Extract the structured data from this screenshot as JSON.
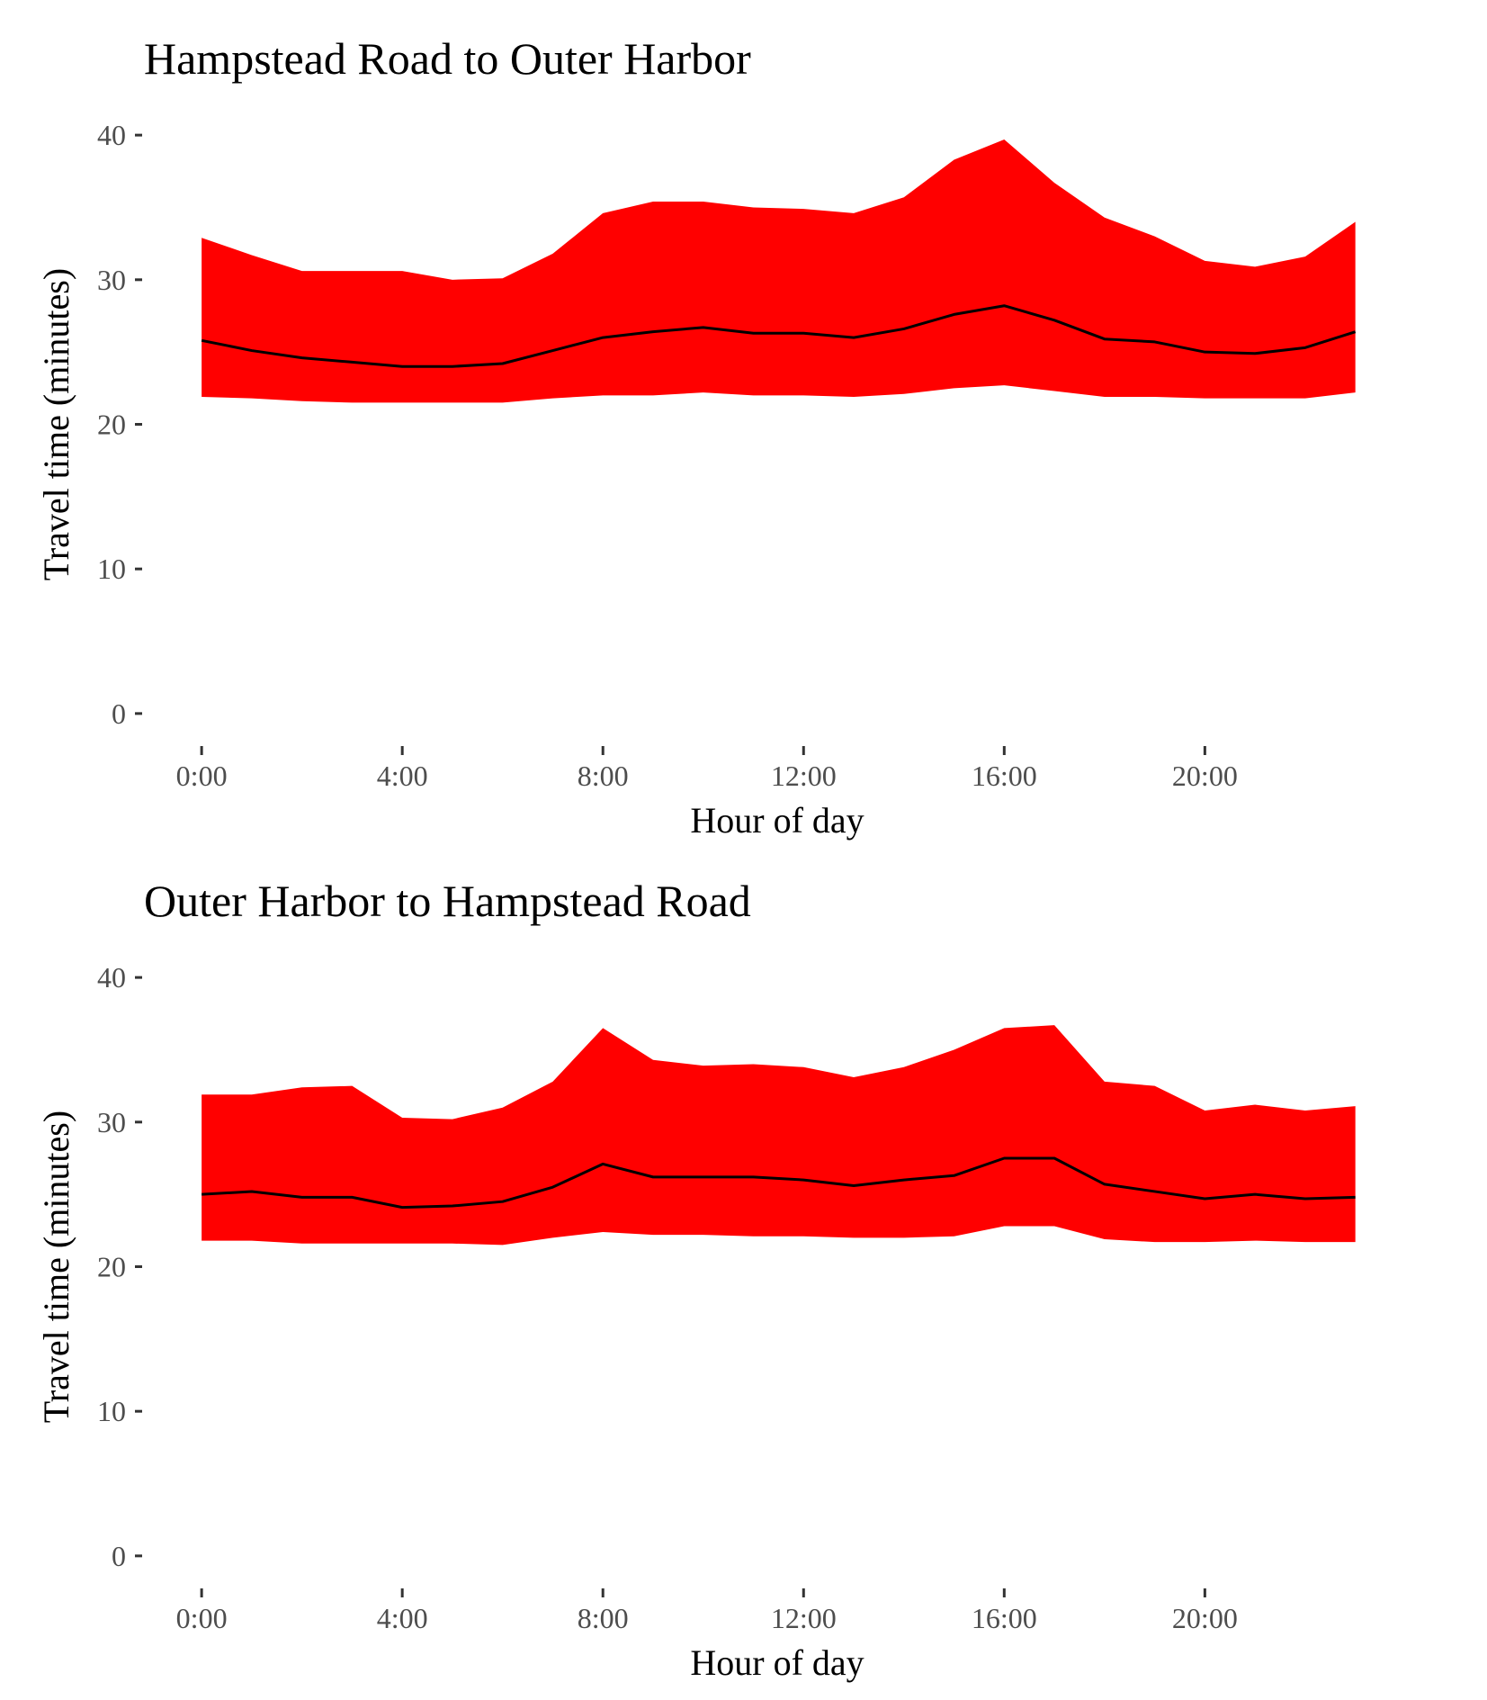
{
  "colors": {
    "band": "#ff0000",
    "line": "#000000",
    "tick_text": "#4d4d4d",
    "background": "#ffffff"
  },
  "chart_data": [
    {
      "type": "area",
      "title": "Hampstead Road to Outer Harbor",
      "xlabel": "Hour of day",
      "ylabel": "Travel time (minutes)",
      "x": [
        0,
        1,
        2,
        3,
        4,
        5,
        6,
        7,
        8,
        9,
        10,
        11,
        12,
        13,
        14,
        15,
        16,
        17,
        18,
        19,
        20,
        21,
        22,
        23
      ],
      "x_ticks": [
        {
          "value": 0,
          "label": "0:00"
        },
        {
          "value": 4,
          "label": "4:00"
        },
        {
          "value": 8,
          "label": "8:00"
        },
        {
          "value": 12,
          "label": "12:00"
        },
        {
          "value": 16,
          "label": "16:00"
        },
        {
          "value": 20,
          "label": "20:00"
        }
      ],
      "y_ticks": [
        0,
        10,
        20,
        30,
        40
      ],
      "xlim": [
        -1.15,
        24.1
      ],
      "ylim": [
        -2,
        42
      ],
      "grid": false,
      "series": [
        {
          "role": "upper",
          "values": [
            32.9,
            31.7,
            30.6,
            30.6,
            30.6,
            30.0,
            30.1,
            31.8,
            34.6,
            35.4,
            35.4,
            35.0,
            34.9,
            34.6,
            35.7,
            38.3,
            39.7,
            36.7,
            34.3,
            33.0,
            31.3,
            30.9,
            31.6,
            34.0
          ]
        },
        {
          "role": "lower",
          "values": [
            21.9,
            21.8,
            21.6,
            21.5,
            21.5,
            21.5,
            21.5,
            21.8,
            22.0,
            22.0,
            22.2,
            22.0,
            22.0,
            21.9,
            22.1,
            22.5,
            22.7,
            22.3,
            21.9,
            21.9,
            21.8,
            21.8,
            21.8,
            22.2
          ]
        },
        {
          "role": "median",
          "values": [
            25.8,
            25.1,
            24.6,
            24.3,
            24.0,
            24.0,
            24.2,
            25.1,
            26.0,
            26.4,
            26.7,
            26.3,
            26.3,
            26.0,
            26.6,
            27.6,
            28.2,
            27.2,
            25.9,
            25.7,
            25.0,
            24.9,
            25.3,
            26.4
          ]
        }
      ]
    },
    {
      "type": "area",
      "title": "Outer Harbor to Hampstead Road",
      "xlabel": "Hour of day",
      "ylabel": "Travel time (minutes)",
      "x": [
        0,
        1,
        2,
        3,
        4,
        5,
        6,
        7,
        8,
        9,
        10,
        11,
        12,
        13,
        14,
        15,
        16,
        17,
        18,
        19,
        20,
        21,
        22,
        23
      ],
      "x_ticks": [
        {
          "value": 0,
          "label": "0:00"
        },
        {
          "value": 4,
          "label": "4:00"
        },
        {
          "value": 8,
          "label": "8:00"
        },
        {
          "value": 12,
          "label": "12:00"
        },
        {
          "value": 16,
          "label": "16:00"
        },
        {
          "value": 20,
          "label": "20:00"
        }
      ],
      "y_ticks": [
        0,
        10,
        20,
        30,
        40
      ],
      "xlim": [
        -1.15,
        24.1
      ],
      "ylim": [
        -2,
        42
      ],
      "grid": false,
      "series": [
        {
          "role": "upper",
          "values": [
            31.9,
            31.9,
            32.4,
            32.5,
            30.3,
            30.2,
            31.0,
            32.8,
            36.5,
            34.3,
            33.9,
            34.0,
            33.8,
            33.1,
            33.8,
            35.0,
            36.5,
            36.7,
            32.8,
            32.5,
            30.8,
            31.2,
            30.8,
            31.1
          ]
        },
        {
          "role": "lower",
          "values": [
            21.8,
            21.8,
            21.6,
            21.6,
            21.6,
            21.6,
            21.5,
            22.0,
            22.4,
            22.2,
            22.2,
            22.1,
            22.1,
            22.0,
            22.0,
            22.1,
            22.8,
            22.8,
            21.9,
            21.7,
            21.7,
            21.8,
            21.7,
            21.7
          ]
        },
        {
          "role": "median",
          "values": [
            25.0,
            25.2,
            24.8,
            24.8,
            24.1,
            24.2,
            24.5,
            25.5,
            27.1,
            26.2,
            26.2,
            26.2,
            26.0,
            25.6,
            26.0,
            26.3,
            27.5,
            27.5,
            25.7,
            25.2,
            24.7,
            25.0,
            24.7,
            24.8
          ]
        }
      ]
    }
  ]
}
